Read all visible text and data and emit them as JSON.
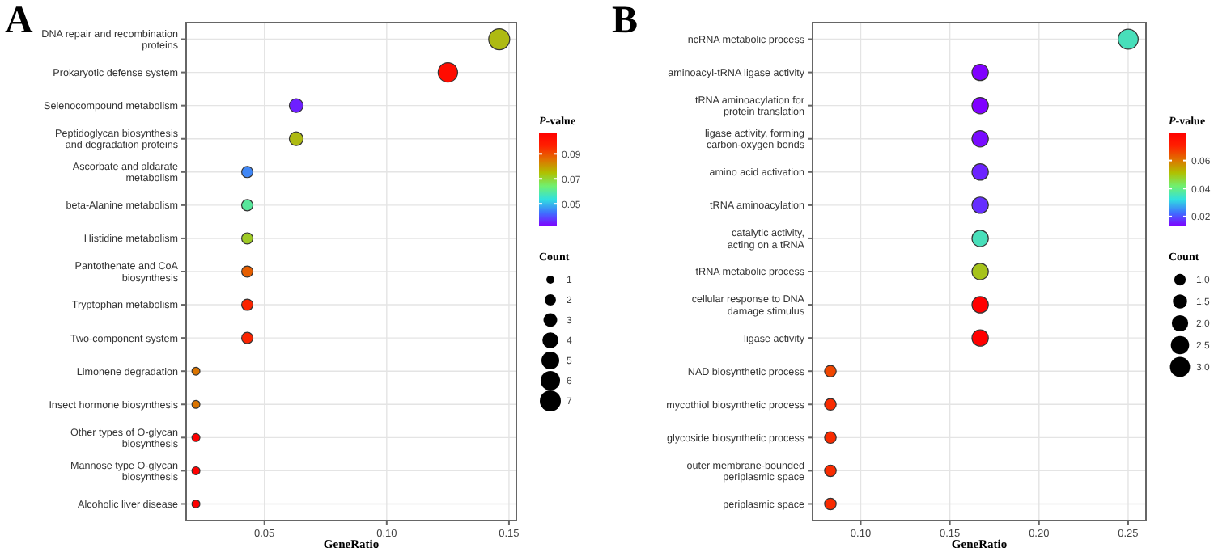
{
  "chart_data": [
    {
      "type": "bubble",
      "title": "A",
      "xlabel": "GeneRatio",
      "clabel": "P-value",
      "legend_title": "Count",
      "orientation": "horizontal",
      "grid": true,
      "categories": [
        "DNA repair and recombination proteins",
        "Prokaryotic defense system",
        "Selenocompound metabolism",
        "Peptidoglycan biosynthesis and degradation proteins",
        "Ascorbate and aldarate metabolism",
        "beta-Alanine metabolism",
        "Histidine metabolism",
        "Pantothenate and CoA biosynthesis",
        "Tryptophan metabolism",
        "Two-component system",
        "Limonene degradation",
        "Insect hormone biosynthesis",
        "Other types of O-glycan biosynthesis",
        "Mannose type O-glycan biosynthesis",
        "Alcoholic liver disease"
      ],
      "values": [
        0.146,
        0.125,
        0.063,
        0.063,
        0.043,
        0.043,
        0.043,
        0.043,
        0.043,
        0.043,
        0.022,
        0.022,
        0.022,
        0.022,
        0.022
      ],
      "sizes": [
        7,
        6,
        3,
        3,
        2,
        2,
        2,
        2,
        2,
        2,
        1,
        1,
        1,
        1,
        1
      ],
      "cvalues": [
        0.075,
        0.103,
        0.035,
        0.075,
        0.045,
        0.06,
        0.072,
        0.088,
        0.097,
        0.097,
        0.085,
        0.085,
        0.107,
        0.107,
        0.107
      ],
      "size_legend": [
        1,
        2,
        3,
        4,
        5,
        6,
        7
      ],
      "xlim": [
        0.018,
        0.153
      ],
      "xticks": [
        0.05,
        {
          "value": 0.1,
          "label": "0.10"
        },
        0.15
      ],
      "clim": [
        0.032,
        0.107
      ],
      "cticks": [
        0.05,
        0.07,
        0.09
      ]
    },
    {
      "type": "bubble",
      "title": "B",
      "xlabel": "GeneRatio",
      "clabel": "P-value",
      "legend_title": "Count",
      "orientation": "horizontal",
      "grid": true,
      "categories": [
        "ncRNA metabolic process",
        "aminoacyl-tRNA ligase activity",
        "tRNA aminoacylation for protein translation",
        "ligase activity, forming carbon-oxygen bonds",
        "amino acid activation",
        "tRNA aminoacylation",
        "catalytic activity, acting on a tRNA",
        "tRNA metabolic process",
        "cellular response to DNA damage stimulus",
        "ligase activity",
        "NAD biosynthetic process",
        "mycothiol biosynthetic process",
        "glycoside biosynthetic process",
        "outer membrane-bounded periplasmic space",
        "periplasmic space"
      ],
      "values": [
        0.25,
        0.167,
        0.167,
        0.167,
        0.167,
        0.167,
        0.167,
        0.167,
        0.167,
        0.167,
        0.083,
        0.083,
        0.083,
        0.083,
        0.083
      ],
      "sizes": [
        3,
        2,
        2,
        2,
        2,
        2,
        2,
        2,
        2,
        2,
        1,
        1,
        1,
        1,
        1
      ],
      "cvalues": [
        0.035,
        0.013,
        0.013,
        0.014,
        0.016,
        0.017,
        0.035,
        0.05,
        0.08,
        0.08,
        0.066,
        0.07,
        0.07,
        0.07,
        0.07
      ],
      "size_legend": [
        {
          "value": 1,
          "label": "1.0"
        },
        1.5,
        {
          "value": 2,
          "label": "2.0"
        },
        2.5,
        {
          "value": 3,
          "label": "3.0"
        }
      ],
      "xlim": [
        0.073,
        0.26
      ],
      "xticks": [
        {
          "value": 0.1,
          "label": "0.10"
        },
        {
          "value": 0.15,
          "label": "0.15"
        },
        {
          "value": 0.2,
          "label": "0.20"
        },
        {
          "value": 0.25,
          "label": "0.25"
        }
      ],
      "clim": [
        0.013,
        0.08
      ],
      "cticks": [
        0.02,
        0.04,
        0.06
      ]
    }
  ]
}
